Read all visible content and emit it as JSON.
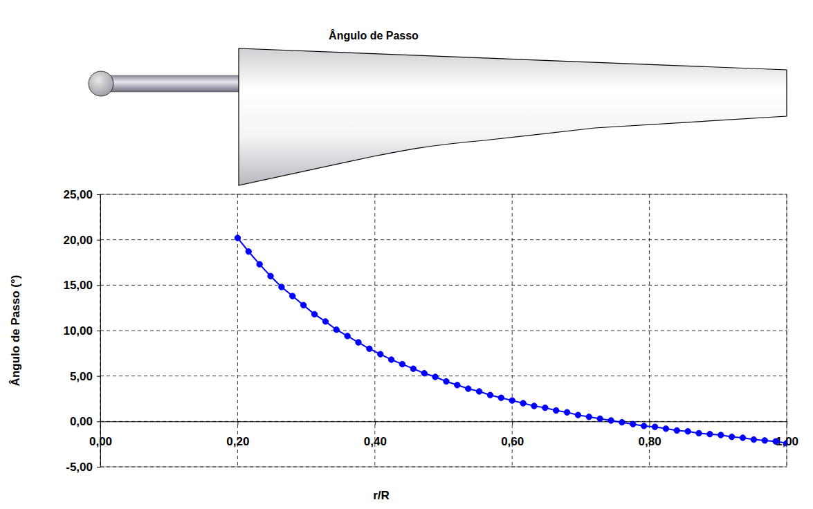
{
  "chart_data": {
    "type": "line",
    "title": "Ângulo de Passo",
    "x_label": "r/R",
    "y_label": "Ângulo de Passo (°)",
    "x": [
      0.2,
      0.216,
      0.232,
      0.248,
      0.264,
      0.28,
      0.296,
      0.312,
      0.328,
      0.344,
      0.36,
      0.376,
      0.392,
      0.408,
      0.424,
      0.44,
      0.456,
      0.472,
      0.488,
      0.504,
      0.52,
      0.536,
      0.552,
      0.568,
      0.584,
      0.6,
      0.616,
      0.632,
      0.648,
      0.664,
      0.68,
      0.696,
      0.712,
      0.728,
      0.744,
      0.76,
      0.776,
      0.792,
      0.808,
      0.824,
      0.84,
      0.856,
      0.872,
      0.888,
      0.904,
      0.92,
      0.936,
      0.952,
      0.968,
      0.984,
      1.0
    ],
    "values": [
      20.2,
      18.7,
      17.3,
      16.0,
      14.8,
      13.8,
      12.8,
      11.8,
      11.0,
      10.1,
      9.4,
      8.7,
      8.0,
      7.4,
      6.8,
      6.3,
      5.8,
      5.3,
      4.9,
      4.4,
      4.0,
      3.6,
      3.3,
      2.9,
      2.6,
      2.3,
      2.0,
      1.7,
      1.5,
      1.2,
      1.0,
      0.7,
      0.5,
      0.3,
      0.1,
      -0.1,
      -0.3,
      -0.5,
      -0.6,
      -0.8,
      -1.0,
      -1.1,
      -1.3,
      -1.4,
      -1.5,
      -1.7,
      -1.8,
      -2.0,
      -2.1,
      -2.2,
      -2.4
    ],
    "color": "#0000ff",
    "marker": "circle",
    "line_style": "solid",
    "xlim": [
      0,
      1
    ],
    "xticks": [
      {
        "value": 0,
        "label": "0,00"
      },
      {
        "value": 0.2,
        "label": "0,20"
      },
      {
        "value": 0.4,
        "label": "0,40"
      },
      {
        "value": 0.6,
        "label": "0,60"
      },
      {
        "value": 0.8,
        "label": "0,80"
      },
      {
        "value": 1,
        "label": "1,00"
      }
    ],
    "ylim": [
      -5,
      25
    ],
    "yticks": [
      {
        "value": -5,
        "label": "-5,00"
      },
      {
        "value": 0,
        "label": "0,00"
      },
      {
        "value": 5,
        "label": "5,00"
      },
      {
        "value": 10,
        "label": "10,00"
      },
      {
        "value": 15,
        "label": "15,00"
      },
      {
        "value": 20,
        "label": "20,00"
      },
      {
        "value": 25,
        "label": "25,00"
      }
    ],
    "grid": true
  }
}
